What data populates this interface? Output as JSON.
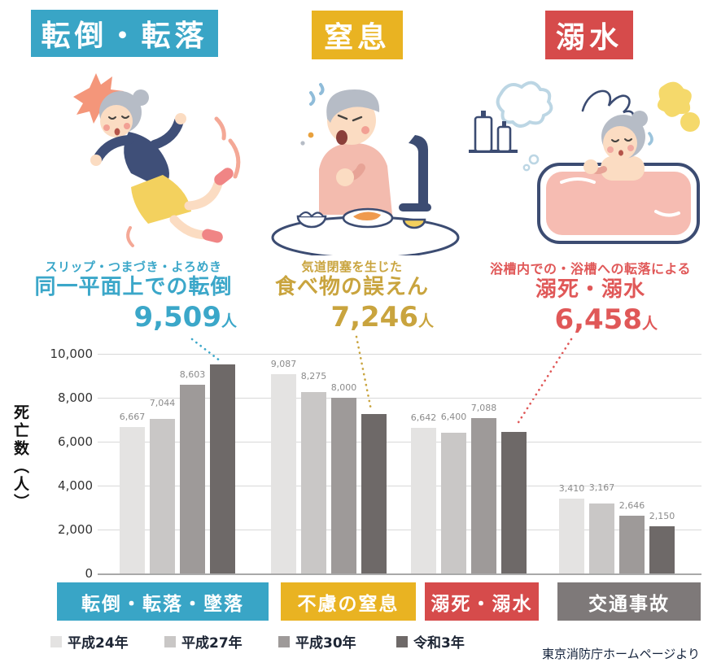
{
  "headers": [
    {
      "label": "転倒・転落",
      "color": "#39a5c6"
    },
    {
      "label": "窒息",
      "color": "#e9b322"
    },
    {
      "label": "溺水",
      "color": "#d64b4b"
    }
  ],
  "illustrations": [
    {
      "name": "falling-elderly-woman-illustration"
    },
    {
      "name": "choking-elderly-man-at-table-illustration"
    },
    {
      "name": "elderly-woman-in-bathtub-illustration"
    }
  ],
  "annotations": [
    {
      "line1": "スリップ・つまづき・よろめき",
      "line2": "同一平面上での転倒",
      "value": "9,509",
      "unit": "人",
      "color": "#3ba7c9"
    },
    {
      "line1": "気道閉塞を生じた",
      "line2": "食べ物の誤えん",
      "value": "7,246",
      "unit": "人",
      "color": "#c9a43e"
    },
    {
      "line1": "浴槽内での・浴槽への転落による",
      "line2": "溺死・溺水",
      "value": "6,458",
      "unit": "人",
      "color": "#e05858"
    }
  ],
  "chart_data": {
    "type": "bar",
    "ylabel": "死亡数（人）",
    "ylim": [
      0,
      10000
    ],
    "yticks": [
      10000,
      8000,
      6000,
      4000,
      2000,
      0
    ],
    "grid": true,
    "legend_position": "bottom",
    "categories": [
      {
        "label": "転倒・転落・墜落",
        "color": "#39a5c6"
      },
      {
        "label": "不慮の窒息",
        "color": "#e9b322"
      },
      {
        "label": "溺死・溺水",
        "color": "#d64b4b"
      },
      {
        "label": "交通事故",
        "color": "#7e7979"
      }
    ],
    "series": [
      {
        "name": "平成24年",
        "color": "#e4e3e2",
        "values": [
          6667,
          9087,
          6642,
          3410
        ]
      },
      {
        "name": "平成27年",
        "color": "#c9c7c6",
        "values": [
          7044,
          8275,
          6400,
          3167
        ]
      },
      {
        "name": "平成30年",
        "color": "#9e9a99",
        "values": [
          8603,
          8000,
          7088,
          2646
        ]
      },
      {
        "name": "令和3年",
        "color": "#6e6968",
        "values": [
          9509,
          7246,
          6458,
          2150
        ],
        "hide_value_labels_for_categories": [
          0,
          1,
          2
        ]
      }
    ]
  },
  "footer": "東京消防庁ホームページより"
}
